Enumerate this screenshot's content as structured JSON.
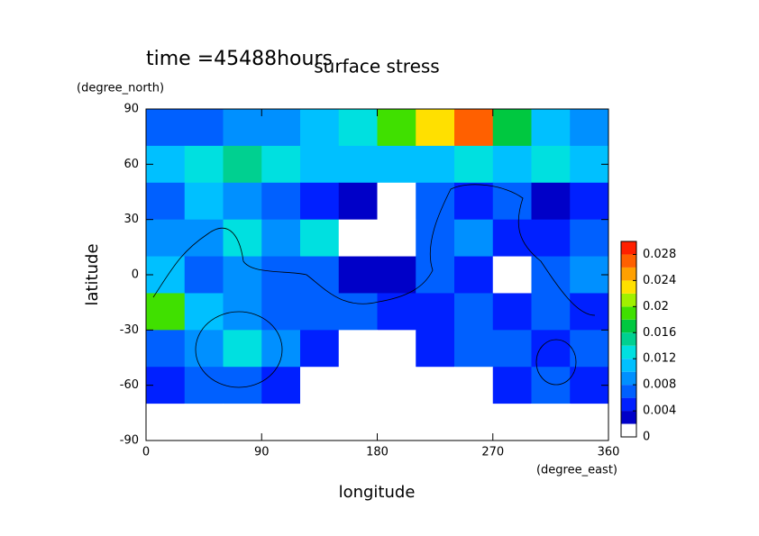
{
  "chart_data": {
    "type": "heatmap",
    "title": "surface stress",
    "annotation": "time =45488hours",
    "x_label": "longitude",
    "x_units": "(degree_east)",
    "y_label": "latitude",
    "y_units": "(degree_north)",
    "x": [
      15,
      45,
      75,
      105,
      135,
      165,
      195,
      225,
      255,
      285,
      315,
      345
    ],
    "y": [
      80,
      60,
      40,
      20,
      0,
      -20,
      -40,
      -60,
      -80
    ],
    "z": [
      [
        0.006,
        0.006,
        0.008,
        0.008,
        0.01,
        0.012,
        0.018,
        0.022,
        0.026,
        0.016,
        0.01,
        0.008
      ],
      [
        0.01,
        0.012,
        0.014,
        0.012,
        0.01,
        0.01,
        0.01,
        0.01,
        0.012,
        0.01,
        0.012,
        0.01
      ],
      [
        0.006,
        0.01,
        0.008,
        0.006,
        0.004,
        0.002,
        0.001,
        0.006,
        0.004,
        0.006,
        0.003,
        0.004
      ],
      [
        0.008,
        0.008,
        0.012,
        0.008,
        0.012,
        0.001,
        0.001,
        0.006,
        0.008,
        0.004,
        0.004,
        0.006
      ],
      [
        0.01,
        0.006,
        0.008,
        0.006,
        0.006,
        0.002,
        0.003,
        0.006,
        0.004,
        0.001,
        0.006,
        0.008
      ],
      [
        0.018,
        0.01,
        0.008,
        0.006,
        0.006,
        0.006,
        0.004,
        0.004,
        0.006,
        0.004,
        0.006,
        0.004
      ],
      [
        0.006,
        0.008,
        0.012,
        0.008,
        0.004,
        0.001,
        0.001,
        0.004,
        0.006,
        0.006,
        0.004,
        0.006
      ],
      [
        0.004,
        0.006,
        0.006,
        0.004,
        0.001,
        0.001,
        0.001,
        0.001,
        0.001,
        0.004,
        0.006,
        0.004
      ],
      [
        0.001,
        0.001,
        0.001,
        0.001,
        0.001,
        0.001,
        0.001,
        0.001,
        0.001,
        0.001,
        0.001,
        0.001
      ]
    ],
    "xlim": [
      0,
      360
    ],
    "xticks": [
      0,
      90,
      180,
      270,
      360
    ],
    "ylim": [
      -90,
      90
    ],
    "yticks": [
      -90,
      -60,
      -30,
      0,
      30,
      60,
      90
    ],
    "levels": [
      0,
      0.002,
      0.004,
      0.006,
      0.008,
      0.01,
      0.012,
      0.014,
      0.016,
      0.018,
      0.02,
      0.022,
      0.024,
      0.026,
      0.028,
      0.03
    ],
    "colors": [
      "#ffffff",
      "#0000c8",
      "#0020ff",
      "#0060ff",
      "#0090ff",
      "#00c0ff",
      "#00e0e0",
      "#00d090",
      "#00c840",
      "#40e000",
      "#a0f000",
      "#ffe000",
      "#ffa000",
      "#ff6000",
      "#ff2000"
    ],
    "colorbar_ticks": [
      0,
      0.004,
      0.008,
      0.012,
      0.016,
      0.02,
      0.024,
      0.028
    ]
  }
}
